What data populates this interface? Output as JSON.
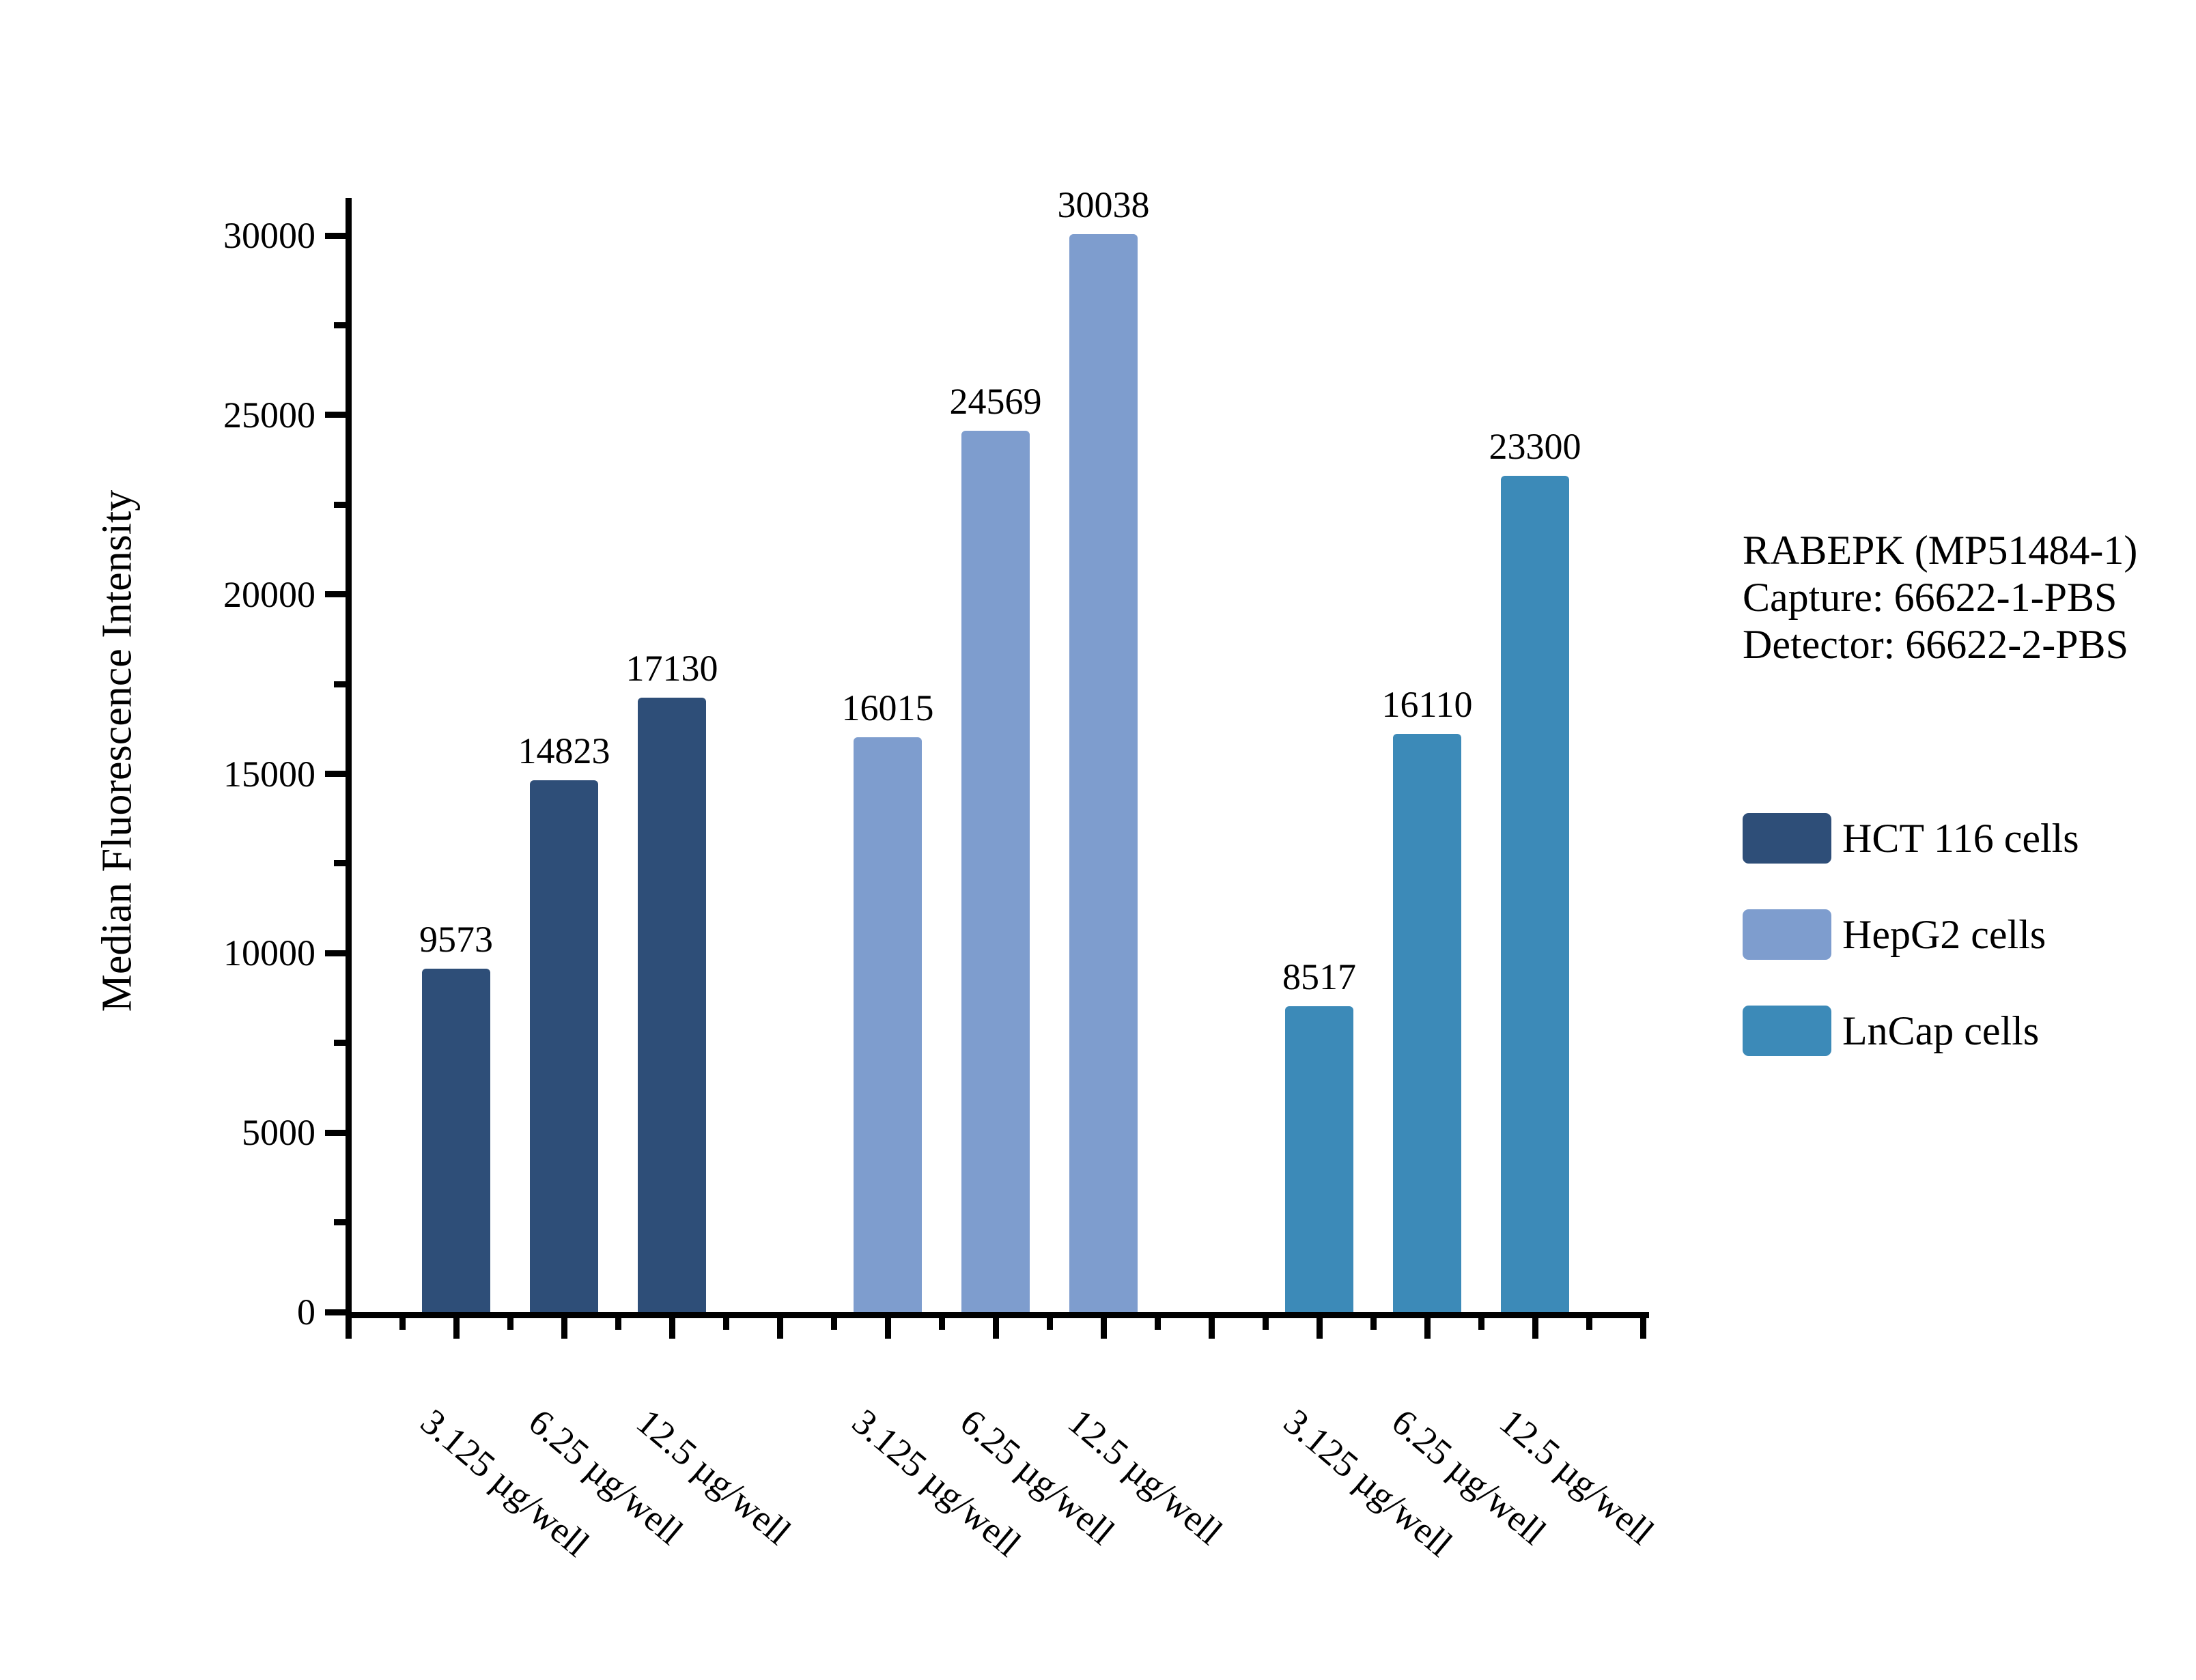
{
  "chart_data": {
    "type": "bar",
    "title": "",
    "ylabel": "Median Fluorescence Intensity",
    "xlabel": "",
    "ylim": [
      0,
      31050
    ],
    "grid": false,
    "legend_position": "right",
    "categories": [
      "3.125 µg/well",
      "6.25 µg/well",
      "12.5 µg/well"
    ],
    "series": [
      {
        "name": "HCT 116 cells",
        "color": "#2E4E78",
        "values": [
          9573,
          14823,
          17130
        ]
      },
      {
        "name": "HepG2 cells",
        "color": "#7E9DCE",
        "values": [
          16015,
          24569,
          30038
        ]
      },
      {
        "name": "LnCap cells",
        "color": "#3C8AB8",
        "values": [
          8517,
          16110,
          23300
        ]
      }
    ],
    "y_axis": {
      "major_ticks": [
        {
          "value": 0,
          "label": "0"
        },
        {
          "value": 5000,
          "label": "5000"
        },
        {
          "value": 10000,
          "label": "10000"
        },
        {
          "value": 15000,
          "label": "15000"
        },
        {
          "value": 20000,
          "label": "20000"
        },
        {
          "value": 25000,
          "label": "25000"
        },
        {
          "value": 30000,
          "label": "30000"
        }
      ],
      "minor_ticks": [
        2500,
        7500,
        12500,
        17500,
        22500,
        27500
      ]
    },
    "annotation": {
      "lines": [
        "RABEPK (MP51484-1)",
        "Capture: 66622-1-PBS",
        "Detector: 66622-2-PBS"
      ]
    }
  },
  "colors": {
    "axis": "#000000",
    "background": "#ffffff",
    "text": "#000000"
  }
}
